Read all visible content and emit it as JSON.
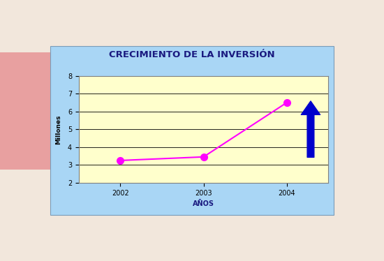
{
  "chart_data": {
    "type": "line",
    "title": "CRECIMIENTO DE LA INVERSIÓN",
    "x_label": "AÑOS",
    "y_label": "Millones",
    "categories": [
      "2002",
      "2003",
      "2004"
    ],
    "values": [
      3.25,
      3.45,
      6.5
    ],
    "color": "#ff00ff",
    "marker": "circle",
    "line_style": "solid",
    "ylim": [
      2,
      8
    ],
    "yticks": [
      2,
      3,
      4,
      5,
      6,
      7,
      8
    ],
    "grid": true
  }
}
